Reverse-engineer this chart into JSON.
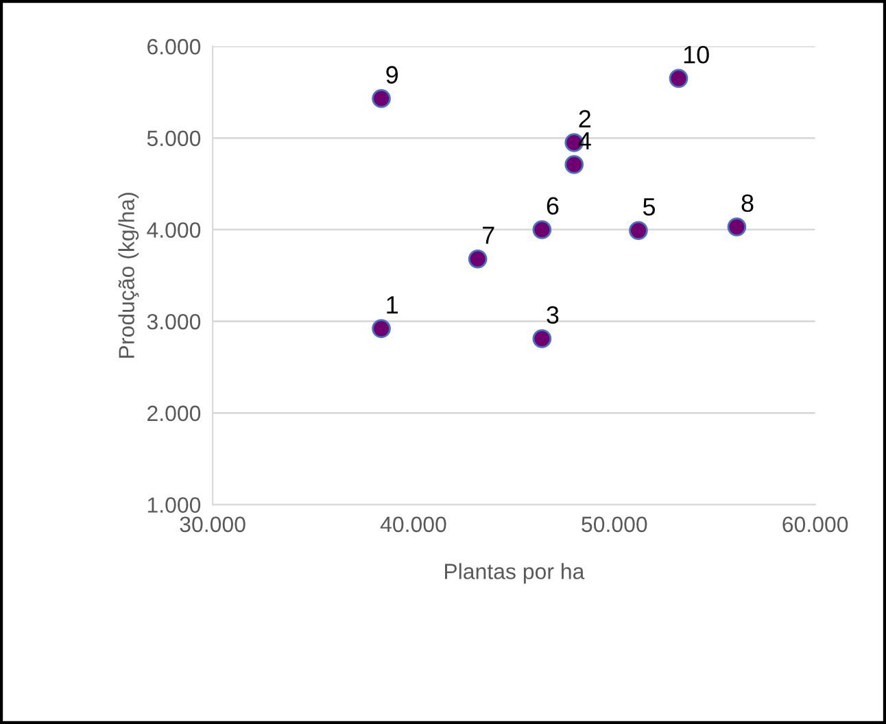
{
  "chart_data": {
    "type": "scatter",
    "xlabel": "Plantas por ha",
    "ylabel": "Produção (kg/ha)",
    "x": [
      38400,
      48000,
      46400,
      48000,
      51200,
      46400,
      43200,
      56100,
      38400,
      53200
    ],
    "series": [
      {
        "color": "#700070",
        "values": [
          2920,
          4950,
          2810,
          4710,
          3990,
          4000,
          3680,
          4030,
          5430,
          5650
        ]
      }
    ],
    "annotations": [
      {
        "text": "1",
        "x": 38400,
        "y": 2920
      },
      {
        "text": "2",
        "x": 48000,
        "y": 4950
      },
      {
        "text": "3",
        "x": 46400,
        "y": 2810
      },
      {
        "text": "4",
        "x": 48000,
        "y": 4710
      },
      {
        "text": "5",
        "x": 51200,
        "y": 3990
      },
      {
        "text": "6",
        "x": 46400,
        "y": 4000
      },
      {
        "text": "7",
        "x": 43200,
        "y": 3680
      },
      {
        "text": "8",
        "x": 56100,
        "y": 4030
      },
      {
        "text": "9",
        "x": 38400,
        "y": 5430
      },
      {
        "text": "10",
        "x": 53200,
        "y": 5650
      }
    ],
    "xlim": [
      30000,
      60000
    ],
    "xticks": [
      {
        "value": 30000,
        "label": "30.000"
      },
      {
        "value": 40000,
        "label": "40.000"
      },
      {
        "value": 50000,
        "label": "50.000"
      },
      {
        "value": 60000,
        "label": "60.000"
      }
    ],
    "ylim": [
      1000,
      6000
    ],
    "yticks": [
      {
        "value": 1000,
        "label": "1.000"
      },
      {
        "value": 2000,
        "label": "2.000"
      },
      {
        "value": 3000,
        "label": "3.000"
      },
      {
        "value": 4000,
        "label": "4.000"
      },
      {
        "value": 5000,
        "label": "5.000"
      },
      {
        "value": 6000,
        "label": "6.000"
      }
    ],
    "grid": "y",
    "marker": "circle"
  }
}
